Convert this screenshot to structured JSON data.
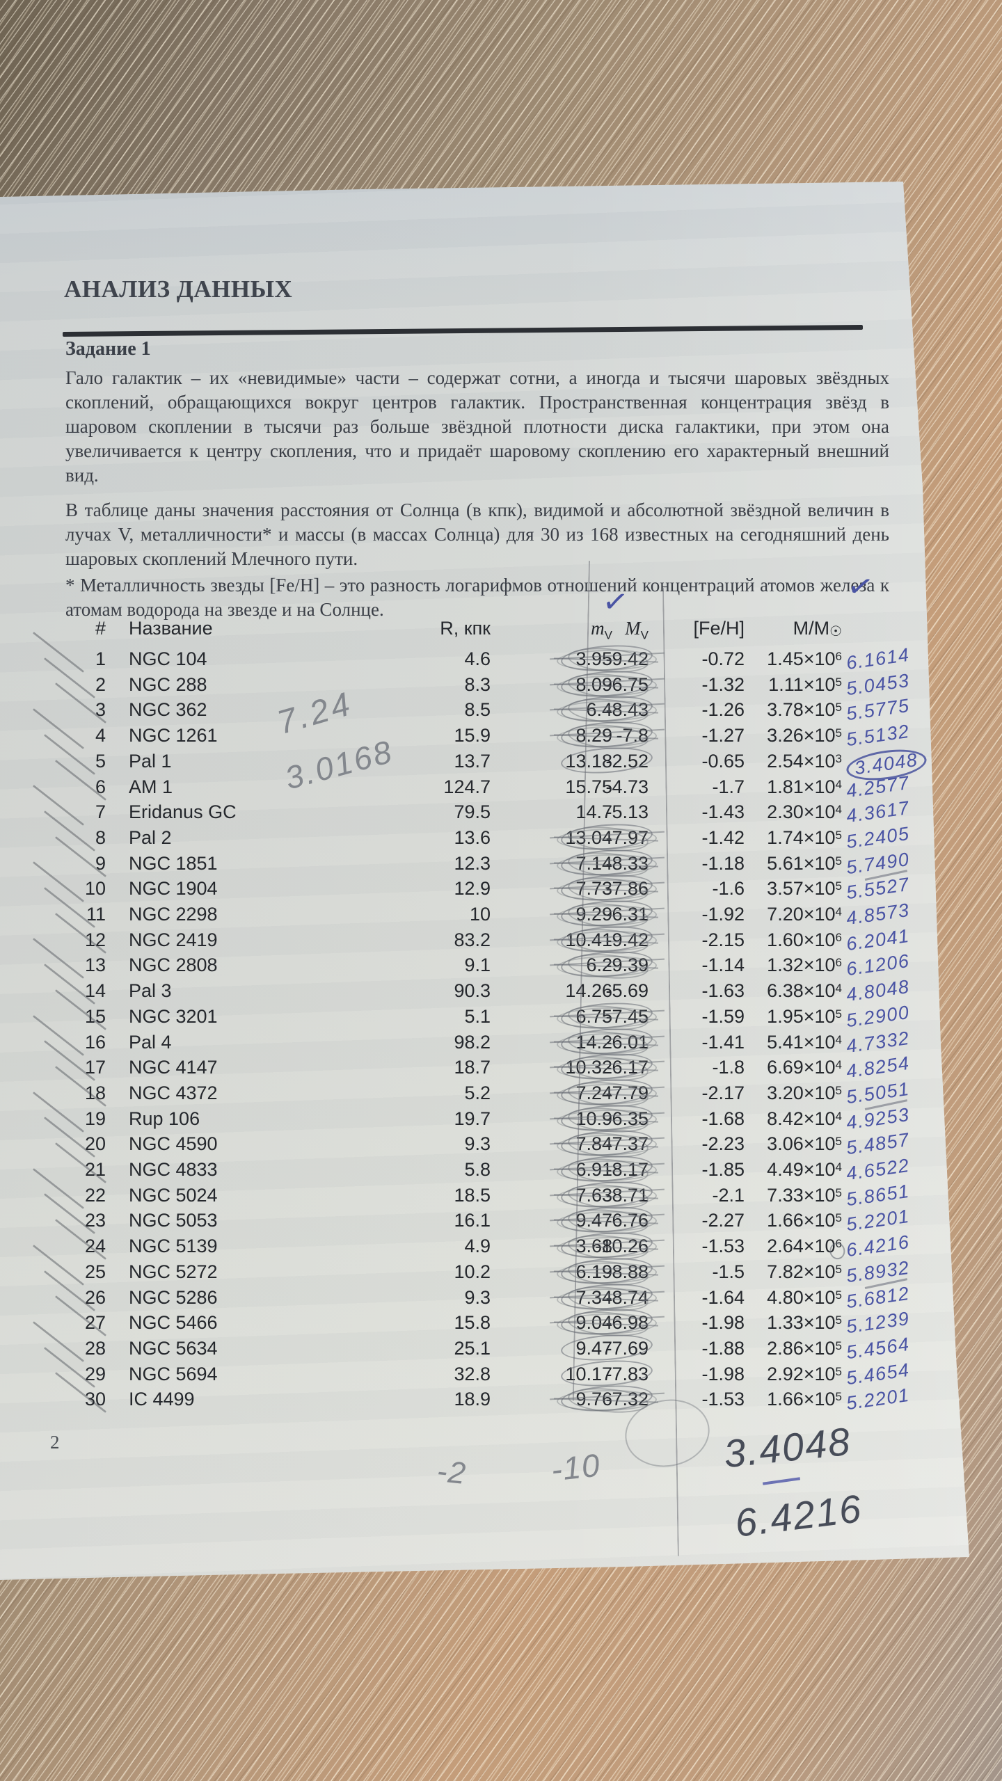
{
  "document": {
    "section_title": "АНАЛИЗ ДАННЫХ",
    "task_title": "Задание 1",
    "paragraph1": "Гало галактик – их «невидимые» части – содержат сотни, а иногда и тысячи шаровых звёздных скоплений, обращающихся вокруг центров галактик. Пространственная концентрация звёзд в шаровом скоплении в тысячи раз больше звёздной плотности диска галактики, при этом она увеличивается к центру скопления, что и придаёт шаровому скоплению его характерный внешний вид.",
    "paragraph2": "В таблице даны значения расстояния от Солнца (в кпк), видимой и абсолютной звёздной величин в лучах V, металличности* и массы (в массах Солнца) для 30 из 168 известных на сегодняшний день шаровых скоплений Млечного пути.",
    "footnote": "* Металличность звезды [Fe/H] – это разность логарифмов отношений концентраций атомов железа к атомам водорода на звезде и на Солнце.",
    "page_number": "2"
  },
  "table": {
    "headers": {
      "num": "#",
      "name": "Название",
      "r": "R, кпк",
      "mv_letter": "m",
      "mv_sub": "V",
      "Mv_letter": "M",
      "Mv_sub": "V",
      "feh": "[Fe/H]",
      "mass_main": "M/M",
      "mass_sun": "☉"
    },
    "rows": [
      {
        "num": "1",
        "name": "NGC 104",
        "r": "4.6",
        "mv": "3.95",
        "Mv": "-9.42",
        "feh": "-0.72",
        "mass": "1.45×10",
        "mass_exp": "6",
        "hw": "6.1614",
        "mark": "scribble"
      },
      {
        "num": "2",
        "name": "NGC 288",
        "r": "8.3",
        "mv": "8.09",
        "Mv": "-6.75",
        "feh": "-1.32",
        "mass": "1.11×10",
        "mass_exp": "5",
        "hw": "5.0453",
        "mark": "scribble"
      },
      {
        "num": "3",
        "name": "NGC 362",
        "r": "8.5",
        "mv": "6.4",
        "Mv": "-8.43",
        "feh": "-1.26",
        "mass": "3.78×10",
        "mass_exp": "5",
        "hw": "5.5775",
        "mark": "scribble"
      },
      {
        "num": "4",
        "name": "NGC 1261",
        "r": "15.9",
        "mv": "8.29",
        "Mv": "-7.8",
        "feh": "-1.27",
        "mass": "3.26×10",
        "mass_exp": "5",
        "hw": "5.5132",
        "mark": "scribble"
      },
      {
        "num": "5",
        "name": "Pal 1",
        "r": "13.7",
        "mv": "13.18",
        "Mv": "-2.52",
        "feh": "-0.65",
        "mass": "2.54×10",
        "mass_exp": "3",
        "hw": "3.4048",
        "mark": "circle",
        "hw_circled": true
      },
      {
        "num": "6",
        "name": "AM 1",
        "r": "124.7",
        "mv": "15.75",
        "Mv": "-4.73",
        "feh": "-1.7",
        "mass": "1.81×10",
        "mass_exp": "4",
        "hw": "4.2577",
        "mark": "none"
      },
      {
        "num": "7",
        "name": "Eridanus GC",
        "r": "79.5",
        "mv": "14.7",
        "Mv": "-5.13",
        "feh": "-1.43",
        "mass": "2.30×10",
        "mass_exp": "4",
        "hw": "4.3617",
        "mark": "none"
      },
      {
        "num": "8",
        "name": "Pal 2",
        "r": "13.6",
        "mv": "13.04",
        "Mv": "-7.97",
        "feh": "-1.42",
        "mass": "1.74×10",
        "mass_exp": "5",
        "hw": "5.2405",
        "mark": "scribble"
      },
      {
        "num": "9",
        "name": "NGC 1851",
        "r": "12.3",
        "mv": "7.14",
        "Mv": "-8.33",
        "feh": "-1.18",
        "mass": "5.61×10",
        "mass_exp": "5",
        "hw": "5.7490",
        "mark": "scribble",
        "hw_underline": true
      },
      {
        "num": "10",
        "name": "NGC 1904",
        "r": "12.9",
        "mv": "7.73",
        "Mv": "-7.86",
        "feh": "-1.6",
        "mass": "3.57×10",
        "mass_exp": "5",
        "hw": "5.5527",
        "mark": "scribble"
      },
      {
        "num": "11",
        "name": "NGC 2298",
        "r": "10",
        "mv": "9.29",
        "Mv": "-6.31",
        "feh": "-1.92",
        "mass": "7.20×10",
        "mass_exp": "4",
        "hw": "4.8573",
        "mark": "scribble"
      },
      {
        "num": "12",
        "name": "NGC 2419",
        "r": "83.2",
        "mv": "10.41",
        "Mv": "-9.42",
        "feh": "-2.15",
        "mass": "1.60×10",
        "mass_exp": "6",
        "hw": "6.2041",
        "mark": "scribble"
      },
      {
        "num": "13",
        "name": "NGC 2808",
        "r": "9.1",
        "mv": "6.2",
        "Mv": "-9.39",
        "feh": "-1.14",
        "mass": "1.32×10",
        "mass_exp": "6",
        "hw": "6.1206",
        "mark": "scribble"
      },
      {
        "num": "14",
        "name": "Pal 3",
        "r": "90.3",
        "mv": "14.26",
        "Mv": "-5.69",
        "feh": "-1.63",
        "mass": "6.38×10",
        "mass_exp": "4",
        "hw": "4.8048",
        "mark": "none"
      },
      {
        "num": "15",
        "name": "NGC 3201",
        "r": "5.1",
        "mv": "6.75",
        "Mv": "-7.45",
        "feh": "-1.59",
        "mass": "1.95×10",
        "mass_exp": "5",
        "hw": "5.2900",
        "mark": "scribble"
      },
      {
        "num": "16",
        "name": "Pal 4",
        "r": "98.2",
        "mv": "14.2",
        "Mv": "-6.01",
        "feh": "-1.41",
        "mass": "5.41×10",
        "mass_exp": "4",
        "hw": "4.7332",
        "mark": "scribble"
      },
      {
        "num": "17",
        "name": "NGC 4147",
        "r": "18.7",
        "mv": "10.32",
        "Mv": "-6.17",
        "feh": "-1.8",
        "mass": "6.69×10",
        "mass_exp": "4",
        "hw": "4.8254",
        "mark": "scribble"
      },
      {
        "num": "18",
        "name": "NGC 4372",
        "r": "5.2",
        "mv": "7.24",
        "Mv": "-7.79",
        "feh": "-2.17",
        "mass": "3.20×10",
        "mass_exp": "5",
        "hw": "5.5051",
        "mark": "scribble",
        "hw_underline": true
      },
      {
        "num": "19",
        "name": "Rup 106",
        "r": "19.7",
        "mv": "10.9",
        "Mv": "-6.35",
        "feh": "-1.68",
        "mass": "8.42×10",
        "mass_exp": "4",
        "hw": "4.9253",
        "mark": "scribble"
      },
      {
        "num": "20",
        "name": "NGC 4590",
        "r": "9.3",
        "mv": "7.84",
        "Mv": "-7.37",
        "feh": "-2.23",
        "mass": "3.06×10",
        "mass_exp": "5",
        "hw": "5.4857",
        "mark": "scribble"
      },
      {
        "num": "21",
        "name": "NGC 4833",
        "r": "5.8",
        "mv": "6.91",
        "Mv": "-8.17",
        "feh": "-1.85",
        "mass": "4.49×10",
        "mass_exp": "4",
        "hw": "4.6522",
        "mark": "scribble"
      },
      {
        "num": "22",
        "name": "NGC 5024",
        "r": "18.5",
        "mv": "7.63",
        "Mv": "-8.71",
        "feh": "-2.1",
        "mass": "7.33×10",
        "mass_exp": "5",
        "hw": "5.8651",
        "mark": "scribble"
      },
      {
        "num": "23",
        "name": "NGC 5053",
        "r": "16.1",
        "mv": "9.47",
        "Mv": "-6.76",
        "feh": "-2.27",
        "mass": "1.66×10",
        "mass_exp": "5",
        "hw": "5.2201",
        "mark": "scribble"
      },
      {
        "num": "24",
        "name": "NGC 5139",
        "r": "4.9",
        "mv": "3.68",
        "Mv": "-10.26",
        "feh": "-1.53",
        "mass": "2.64×10",
        "mass_exp": "6",
        "hw": "6.4216",
        "mark": "scribble",
        "hw_pre_circle": true
      },
      {
        "num": "25",
        "name": "NGC 5272",
        "r": "10.2",
        "mv": "6.19",
        "Mv": "-8.88",
        "feh": "-1.5",
        "mass": "7.82×10",
        "mass_exp": "5",
        "hw": "5.8932",
        "mark": "scribble",
        "hw_underline": true
      },
      {
        "num": "26",
        "name": "NGC 5286",
        "r": "9.3",
        "mv": "7.34",
        "Mv": "-8.74",
        "feh": "-1.64",
        "mass": "4.80×10",
        "mass_exp": "5",
        "hw": "5.6812",
        "mark": "scribble"
      },
      {
        "num": "27",
        "name": "NGC 5466",
        "r": "15.8",
        "mv": "9.04",
        "Mv": "-6.98",
        "feh": "-1.98",
        "mass": "1.33×10",
        "mass_exp": "5",
        "hw": "5.1239",
        "mark": "scribble"
      },
      {
        "num": "28",
        "name": "NGC 5634",
        "r": "25.1",
        "mv": "9.47",
        "Mv": "-7.69",
        "feh": "-1.88",
        "mass": "2.86×10",
        "mass_exp": "5",
        "hw": "5.4564",
        "mark": "circle"
      },
      {
        "num": "29",
        "name": "NGC 5694",
        "r": "32.8",
        "mv": "10.17",
        "Mv": "-7.83",
        "feh": "-1.98",
        "mass": "2.92×10",
        "mass_exp": "5",
        "hw": "5.4654",
        "mark": "circle"
      },
      {
        "num": "30",
        "name": "IC 4499",
        "r": "18.9",
        "mv": "9.76",
        "Mv": "-7.32",
        "feh": "-1.53",
        "mass": "1.66×10",
        "mass_exp": "5",
        "hw": "5.2201",
        "mark": "scribble"
      }
    ]
  },
  "annotations": {
    "checkmark": "✓",
    "pencil_note_1": "7.24",
    "pencil_note_2": "3.0168",
    "bottom_pencil_1": "-2",
    "bottom_pencil_2": "-10",
    "bottom_value_1": "3.4048",
    "bottom_value_2": "6.4216"
  },
  "colors": {
    "ink_blue": "#4a54a4",
    "pencil_gray": "#83878d",
    "print_dark": "#25282d",
    "paper": "#d7d9d5",
    "wood": "#b5977a"
  }
}
